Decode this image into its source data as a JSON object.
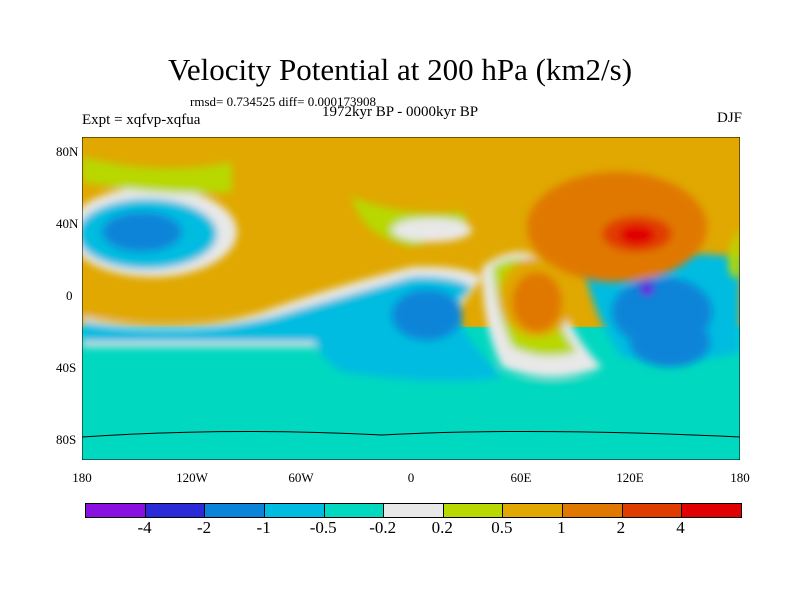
{
  "title": "Velocity Potential at 200 hPa (km2/s)",
  "stats": "rmsd= 0.734525 diff= 0.000173908",
  "expt": "Expt = xqfvp-xqfua",
  "period": "1972kyr BP - 0000kyr BP",
  "season": "DJF",
  "x_ticks": [
    "180",
    "120W",
    "60W",
    "0",
    "60E",
    "120E",
    "180"
  ],
  "y_ticks": [
    "80N",
    "40N",
    "0",
    "40S",
    "80S"
  ],
  "colorbar": {
    "colors": [
      "#8a10e0",
      "#2a2ad8",
      "#0a84d8",
      "#00bce0",
      "#00d8c0",
      "#e8e8e8",
      "#b8d800",
      "#e0a800",
      "#e07800",
      "#e03c00",
      "#e00000"
    ],
    "labels": [
      "-4",
      "-2",
      "-1",
      "-0.5",
      "-0.2",
      "0.2",
      "0.5",
      "1",
      "2",
      "4"
    ]
  }
}
